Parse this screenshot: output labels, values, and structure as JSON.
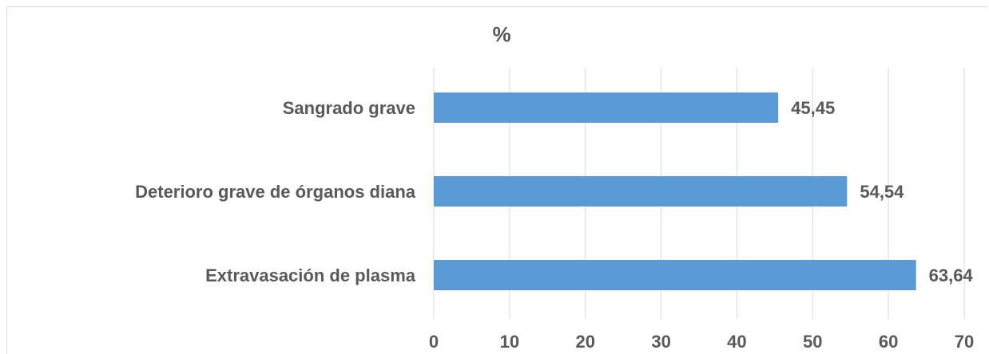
{
  "chart_data": {
    "type": "bar",
    "orientation": "horizontal",
    "title": "%",
    "xlabel": "",
    "ylabel": "",
    "categories": [
      "Sangrado grave",
      "Deterioro grave de órganos diana",
      "Extravasación de plasma"
    ],
    "values": [
      45.45,
      54.54,
      63.64
    ],
    "value_labels": [
      "45,45",
      "54,54",
      "63,64"
    ],
    "xlim": [
      0,
      70
    ],
    "ticks": [
      0,
      10,
      20,
      30,
      40,
      50,
      60,
      70
    ],
    "tick_labels": [
      "0",
      "10",
      "20",
      "30",
      "40",
      "50",
      "60",
      "70"
    ],
    "grid": true,
    "legend": "none",
    "bar_color": "#5b9bd5"
  }
}
